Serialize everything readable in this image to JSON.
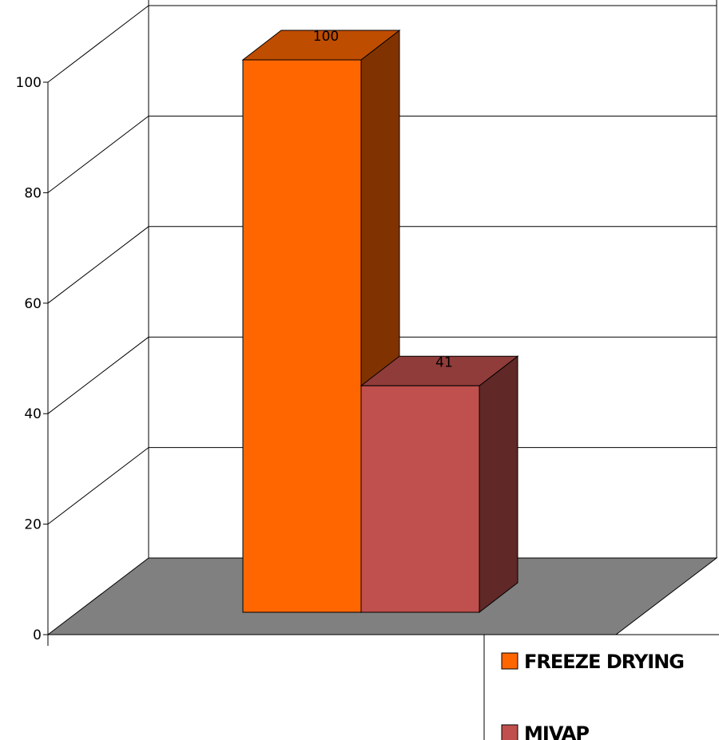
{
  "chart_data": {
    "type": "bar",
    "title": "",
    "xlabel": "",
    "ylabel": "",
    "categories": [
      ""
    ],
    "series": [
      {
        "name": "FREEZE DRYING",
        "values": [
          100
        ],
        "color": "#FF6600"
      },
      {
        "name": "MIVAP",
        "values": [
          41
        ],
        "color": "#C0504D"
      }
    ],
    "ylim": [
      0,
      100
    ],
    "yticks": [
      0,
      20,
      40,
      60,
      80,
      100
    ],
    "ytick_labels": [
      "0",
      "20",
      "40",
      "60",
      "80",
      "100"
    ],
    "data_labels": [
      "100",
      "41"
    ],
    "grid": true,
    "three_d": true,
    "legend_position": "bottom-right",
    "floor_color": "#808080"
  }
}
